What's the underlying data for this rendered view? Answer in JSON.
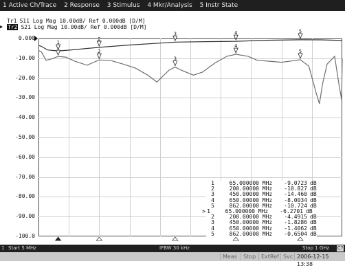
{
  "menu": [
    "1 Active Ch/Trace",
    "2 Response",
    "3 Stimulus",
    "4 Mkr/Analysis",
    "5 Instr State"
  ],
  "traces": [
    {
      "name": "Tr1",
      "label": "S11 Log Mag 10.00dB/ Ref 0.000dB [D/M]",
      "active": false
    },
    {
      "name": "Tr2",
      "label": "S21 Log Mag 10.00dB/ Ref 0.000dB [D/M]",
      "active": true
    }
  ],
  "ref_marker": "▶",
  "axis": {
    "y_ticks": [
      "0.000",
      "-10.00",
      "-20.00",
      "-30.00",
      "-40.00",
      "-50.00",
      "-60.00",
      "-70.00",
      "-80.00",
      "-90.00",
      "-100.0"
    ]
  },
  "chart_data": {
    "type": "line",
    "ylim": [
      -100,
      0
    ],
    "xlim": [
      0.3,
      1000
    ],
    "x_unit": "MHz",
    "grid": true,
    "series": [
      {
        "name": "S11",
        "color": "#6e6e6e",
        "points": [
          [
            0.3,
            -6
          ],
          [
            10,
            -6.8
          ],
          [
            25,
            -11
          ],
          [
            40,
            -10.5
          ],
          [
            65,
            -9.07
          ],
          [
            90,
            -9.4
          ],
          [
            120,
            -11.5
          ],
          [
            160,
            -13.5
          ],
          [
            200,
            -10.83
          ],
          [
            240,
            -11.2
          ],
          [
            280,
            -13
          ],
          [
            320,
            -15
          ],
          [
            360,
            -18.5
          ],
          [
            390,
            -22
          ],
          [
            410,
            -19
          ],
          [
            430,
            -16
          ],
          [
            450,
            -14.46
          ],
          [
            470,
            -16
          ],
          [
            510,
            -18.5
          ],
          [
            540,
            -17
          ],
          [
            580,
            -12.5
          ],
          [
            620,
            -9
          ],
          [
            650,
            -8.0
          ],
          [
            690,
            -9
          ],
          [
            720,
            -11
          ],
          [
            760,
            -11.5
          ],
          [
            800,
            -12
          ],
          [
            840,
            -11.2
          ],
          [
            862,
            -10.72
          ],
          [
            890,
            -14
          ],
          [
            915,
            -28
          ],
          [
            925,
            -33
          ],
          [
            935,
            -23
          ],
          [
            950,
            -13
          ],
          [
            975,
            -9
          ],
          [
            990,
            -24
          ],
          [
            998,
            -31
          ],
          [
            1000,
            -10
          ]
        ]
      },
      {
        "name": "S21",
        "color": "#333333",
        "points": [
          [
            0.3,
            -3.5
          ],
          [
            10,
            -4
          ],
          [
            30,
            -5.8
          ],
          [
            65,
            -6.27
          ],
          [
            100,
            -5.9
          ],
          [
            200,
            -4.49
          ],
          [
            300,
            -3.3
          ],
          [
            450,
            -1.83
          ],
          [
            550,
            -1.6
          ],
          [
            650,
            -1.41
          ],
          [
            750,
            -0.9
          ],
          [
            862,
            -0.65
          ],
          [
            930,
            -0.7
          ],
          [
            1000,
            -1.0
          ]
        ]
      }
    ],
    "markers": [
      {
        "id": "1",
        "x": 65,
        "y_s11": -9.0723,
        "y_s21": -6.2701
      },
      {
        "id": "2",
        "x": 200,
        "y_s11": -10.827,
        "y_s21": -4.4915
      },
      {
        "id": "3",
        "x": 450,
        "y_s11": -14.46,
        "y_s21": -1.8286
      },
      {
        "id": "4",
        "x": 650,
        "y_s11": -8.0034,
        "y_s21": -1.4062
      },
      {
        "id": "5",
        "x": 862,
        "y_s11": -10.724,
        "y_s21": -0.6504
      }
    ]
  },
  "marker_table": [
    {
      "sel": "",
      "id": "1",
      "freq": "65.000000",
      "unit": "MHz",
      "value": "-9.0723",
      "db": "dB"
    },
    {
      "sel": "",
      "id": "2",
      "freq": "200.00000",
      "unit": "MHz",
      "value": "-10.827",
      "db": "dB"
    },
    {
      "sel": "",
      "id": "3",
      "freq": "450.00000",
      "unit": "MHz",
      "value": "-14.460",
      "db": "dB"
    },
    {
      "sel": "",
      "id": "4",
      "freq": "650.00000",
      "unit": "MHz",
      "value": "-8.0034",
      "db": "dB"
    },
    {
      "sel": "",
      "id": "5",
      "freq": "862.00000",
      "unit": "MHz",
      "value": "-10.724",
      "db": "dB"
    },
    {
      "sel": ">",
      "id": "1",
      "freq": "65.000000",
      "unit": "MHz",
      "value": "-6.2701",
      "db": "dB"
    },
    {
      "sel": "",
      "id": "2",
      "freq": "200.00000",
      "unit": "MHz",
      "value": "-4.4915",
      "db": "dB"
    },
    {
      "sel": "",
      "id": "3",
      "freq": "450.00000",
      "unit": "MHz",
      "value": "-1.8286",
      "db": "dB"
    },
    {
      "sel": "",
      "id": "4",
      "freq": "650.00000",
      "unit": "MHz",
      "value": "-1.4062",
      "db": "dB"
    },
    {
      "sel": "",
      "id": "5",
      "freq": "862.00000",
      "unit": "MHz",
      "value": "-0.6504",
      "db": "dB"
    }
  ],
  "status": {
    "channel": "1",
    "start": "Start 5 MHz",
    "ifbw": "IFBW 30 kHz",
    "stop": "Stop 1 GHz",
    "button": "C?"
  },
  "instr": {
    "meas": "Meas",
    "stop": "Stop",
    "extref": "ExtRef",
    "svc": "Svc",
    "datetime": "2006-12-15 13:38"
  }
}
